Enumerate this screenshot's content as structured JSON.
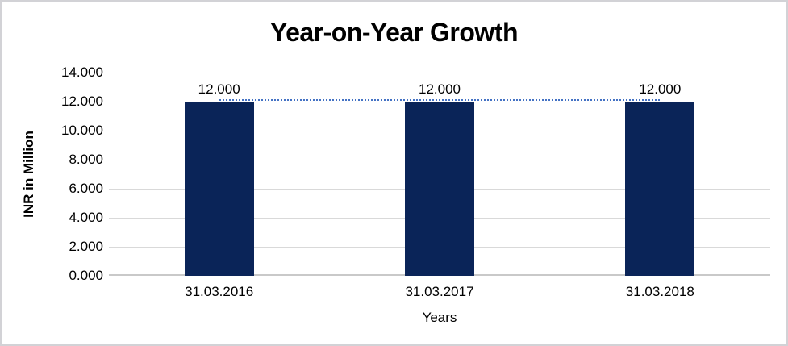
{
  "window": {
    "background_color": "#ffffff",
    "frame_border_color": "#d2d2d6"
  },
  "chart_data": {
    "type": "bar",
    "title": "Year-on-Year Growth",
    "xlabel": "Years",
    "ylabel": "INR in Million",
    "categories": [
      "31.03.2016",
      "31.03.2017",
      "31.03.2018"
    ],
    "values": [
      12.0,
      12.0,
      12.0
    ],
    "data_labels": [
      "12.000",
      "12.000",
      "12.000"
    ],
    "ylim": [
      0,
      14
    ],
    "ytick_step": 2,
    "ytick_labels": [
      "0.000",
      "2.000",
      "4.000",
      "6.000",
      "8.000",
      "10.000",
      "12.000",
      "14.000"
    ],
    "grid": "horizontal-on",
    "legend": "none",
    "bar_color": "#0a2458",
    "gridline_color": "#d9d9d9",
    "axis_line_color": "#c9c9c9",
    "trendline": {
      "type": "linear-dotted",
      "color": "#4472c4",
      "start_value": 12.0,
      "end_value": 12.0
    }
  }
}
